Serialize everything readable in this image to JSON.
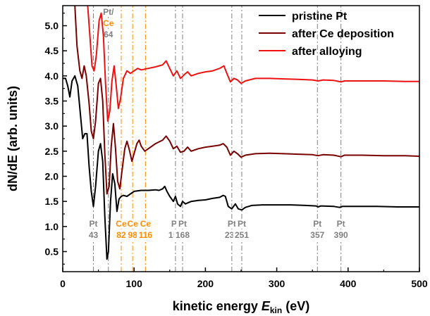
{
  "chart_data": {
    "type": "line",
    "xlabel_prefix": "kinetic energy ",
    "xlabel_symbol": "E",
    "xlabel_subscript": "kin",
    "xlabel_unit": " (eV)",
    "ylabel": "dN/dE (arb. units)",
    "xlim": [
      0,
      500
    ],
    "ylim": [
      0.1,
      5.4
    ],
    "xticks": [
      0,
      100,
      200,
      300,
      400,
      500
    ],
    "yticks": [
      0.5,
      1.0,
      1.5,
      2.0,
      2.5,
      3.0,
      3.5,
      4.0,
      4.5,
      5.0
    ],
    "ytick_labels": [
      "0.5",
      "1.0",
      "1.5",
      "2.0",
      "2.5",
      "3.0",
      "3.5",
      "4.0",
      "4.5",
      "5.0"
    ],
    "grid": false,
    "legend_position": "top-right",
    "series": [
      {
        "name": "pristine Pt",
        "color": "#000000",
        "points": [
          [
            0,
            3.95
          ],
          [
            4,
            3.95
          ],
          [
            7,
            3.8
          ],
          [
            10,
            3.58
          ],
          [
            13,
            3.9
          ],
          [
            17,
            4.0
          ],
          [
            21,
            3.8
          ],
          [
            25,
            3.2
          ],
          [
            28,
            2.75
          ],
          [
            31,
            2.85
          ],
          [
            34,
            2.85
          ],
          [
            37,
            2.2
          ],
          [
            40,
            1.7
          ],
          [
            43,
            1.4
          ],
          [
            46,
            1.8
          ],
          [
            50,
            2.5
          ],
          [
            53,
            2.65
          ],
          [
            56,
            2.3
          ],
          [
            59,
            1.2
          ],
          [
            62,
            0.35
          ],
          [
            64,
            0.5
          ],
          [
            67,
            1.5
          ],
          [
            70,
            2.05
          ],
          [
            73,
            1.85
          ],
          [
            76,
            1.3
          ],
          [
            79,
            1.55
          ],
          [
            82,
            1.6
          ],
          [
            85,
            1.62
          ],
          [
            90,
            1.6
          ],
          [
            95,
            1.65
          ],
          [
            100,
            1.7
          ],
          [
            110,
            1.72
          ],
          [
            120,
            1.72
          ],
          [
            130,
            1.73
          ],
          [
            135,
            1.72
          ],
          [
            140,
            1.75
          ],
          [
            143,
            1.8
          ],
          [
            146,
            1.7
          ],
          [
            150,
            1.6
          ],
          [
            155,
            1.5
          ],
          [
            158,
            1.6
          ],
          [
            161,
            1.45
          ],
          [
            165,
            1.4
          ],
          [
            168,
            1.5
          ],
          [
            172,
            1.45
          ],
          [
            180,
            1.5
          ],
          [
            190,
            1.52
          ],
          [
            200,
            1.53
          ],
          [
            210,
            1.56
          ],
          [
            220,
            1.58
          ],
          [
            225,
            1.62
          ],
          [
            228,
            1.6
          ],
          [
            232,
            1.4
          ],
          [
            237,
            1.35
          ],
          [
            242,
            1.45
          ],
          [
            246,
            1.35
          ],
          [
            251,
            1.33
          ],
          [
            256,
            1.38
          ],
          [
            265,
            1.42
          ],
          [
            280,
            1.43
          ],
          [
            300,
            1.43
          ],
          [
            320,
            1.43
          ],
          [
            340,
            1.42
          ],
          [
            355,
            1.41
          ],
          [
            358,
            1.39
          ],
          [
            362,
            1.41
          ],
          [
            380,
            1.4
          ],
          [
            388,
            1.38
          ],
          [
            392,
            1.4
          ],
          [
            410,
            1.4
          ],
          [
            440,
            1.4
          ],
          [
            470,
            1.39
          ],
          [
            500,
            1.39
          ]
        ]
      },
      {
        "name": "after Ce deposition",
        "color": "#7a0000",
        "points": [
          [
            17,
            5.4
          ],
          [
            20,
            4.6
          ],
          [
            24,
            4.1
          ],
          [
            27,
            3.95
          ],
          [
            30,
            4.2
          ],
          [
            33,
            4.0
          ],
          [
            37,
            3.45
          ],
          [
            40,
            2.9
          ],
          [
            43,
            2.75
          ],
          [
            46,
            3.1
          ],
          [
            50,
            3.85
          ],
          [
            53,
            3.95
          ],
          [
            56,
            3.5
          ],
          [
            59,
            2.45
          ],
          [
            62,
            1.65
          ],
          [
            65,
            1.8
          ],
          [
            68,
            2.6
          ],
          [
            71,
            3.05
          ],
          [
            74,
            2.55
          ],
          [
            77,
            1.9
          ],
          [
            80,
            1.75
          ],
          [
            83,
            2.1
          ],
          [
            87,
            2.55
          ],
          [
            90,
            2.7
          ],
          [
            93,
            2.55
          ],
          [
            97,
            2.3
          ],
          [
            100,
            2.45
          ],
          [
            104,
            2.65
          ],
          [
            107,
            2.72
          ],
          [
            110,
            2.6
          ],
          [
            115,
            2.5
          ],
          [
            120,
            2.55
          ],
          [
            130,
            2.65
          ],
          [
            140,
            2.72
          ],
          [
            145,
            2.8
          ],
          [
            150,
            2.7
          ],
          [
            155,
            2.55
          ],
          [
            160,
            2.6
          ],
          [
            165,
            2.48
          ],
          [
            170,
            2.5
          ],
          [
            175,
            2.58
          ],
          [
            180,
            2.5
          ],
          [
            190,
            2.55
          ],
          [
            200,
            2.58
          ],
          [
            210,
            2.6
          ],
          [
            220,
            2.62
          ],
          [
            225,
            2.65
          ],
          [
            230,
            2.58
          ],
          [
            235,
            2.42
          ],
          [
            240,
            2.5
          ],
          [
            245,
            2.45
          ],
          [
            250,
            2.38
          ],
          [
            256,
            2.42
          ],
          [
            270,
            2.45
          ],
          [
            290,
            2.46
          ],
          [
            310,
            2.45
          ],
          [
            330,
            2.44
          ],
          [
            350,
            2.43
          ],
          [
            358,
            2.41
          ],
          [
            365,
            2.43
          ],
          [
            380,
            2.42
          ],
          [
            390,
            2.39
          ],
          [
            395,
            2.42
          ],
          [
            420,
            2.42
          ],
          [
            450,
            2.41
          ],
          [
            480,
            2.41
          ],
          [
            500,
            2.4
          ]
        ]
      },
      {
        "name": "after alloying",
        "color": "#ee1111",
        "points": [
          [
            35,
            5.4
          ],
          [
            38,
            4.8
          ],
          [
            41,
            4.2
          ],
          [
            44,
            4.1
          ],
          [
            47,
            4.4
          ],
          [
            51,
            5.1
          ],
          [
            54,
            5.25
          ],
          [
            57,
            4.8
          ],
          [
            60,
            3.85
          ],
          [
            63,
            3.1
          ],
          [
            66,
            3.3
          ],
          [
            69,
            3.9
          ],
          [
            72,
            4.2
          ],
          [
            75,
            3.8
          ],
          [
            78,
            3.35
          ],
          [
            81,
            3.55
          ],
          [
            85,
            3.95
          ],
          [
            90,
            4.1
          ],
          [
            95,
            4.05
          ],
          [
            100,
            4.1
          ],
          [
            105,
            4.15
          ],
          [
            110,
            4.12
          ],
          [
            120,
            4.15
          ],
          [
            130,
            4.18
          ],
          [
            140,
            4.22
          ],
          [
            145,
            4.3
          ],
          [
            150,
            4.15
          ],
          [
            155,
            4.0
          ],
          [
            160,
            4.1
          ],
          [
            165,
            3.95
          ],
          [
            170,
            4.02
          ],
          [
            175,
            4.08
          ],
          [
            180,
            4.0
          ],
          [
            190,
            4.05
          ],
          [
            200,
            4.08
          ],
          [
            210,
            4.1
          ],
          [
            220,
            4.15
          ],
          [
            226,
            4.2
          ],
          [
            230,
            4.05
          ],
          [
            235,
            3.88
          ],
          [
            240,
            3.95
          ],
          [
            245,
            3.92
          ],
          [
            250,
            3.85
          ],
          [
            256,
            3.9
          ],
          [
            270,
            3.95
          ],
          [
            290,
            3.95
          ],
          [
            310,
            3.94
          ],
          [
            330,
            3.93
          ],
          [
            350,
            3.92
          ],
          [
            358,
            3.9
          ],
          [
            365,
            3.92
          ],
          [
            380,
            3.91
          ],
          [
            390,
            3.88
          ],
          [
            395,
            3.9
          ],
          [
            420,
            3.9
          ],
          [
            450,
            3.9
          ],
          [
            480,
            3.89
          ],
          [
            500,
            3.89
          ]
        ]
      }
    ],
    "markers": [
      {
        "x": 43,
        "color": "#808080",
        "labels": [
          {
            "text": "Pt",
            "color": "#808080"
          },
          {
            "text": "43",
            "color": "#808080"
          }
        ],
        "label_y": 1.0
      },
      {
        "x": 64,
        "color": "#808080",
        "labels": [
          {
            "text": "Pt/",
            "color": "#808080"
          },
          {
            "text": "Ce",
            "color": "#ff8c00"
          },
          {
            "text": "64",
            "color": "#808080"
          }
        ],
        "label_y": 5.22
      },
      {
        "x": 82,
        "color": "#ff8c00",
        "labels": [
          {
            "text": "Ce",
            "color": "#ff8c00"
          },
          {
            "text": "82",
            "color": "#ff8c00"
          }
        ],
        "label_y": 1.0
      },
      {
        "x": 98,
        "color": "#ff8c00",
        "labels": [
          {
            "text": "Ce",
            "color": "#ff8c00"
          },
          {
            "text": "98",
            "color": "#ff8c00"
          }
        ],
        "label_y": 1.0
      },
      {
        "x": 116,
        "color": "#ff8c00",
        "labels": [
          {
            "text": "Ce",
            "color": "#ff8c00"
          },
          {
            "text": "116",
            "color": "#ff8c00"
          }
        ],
        "label_y": 1.0
      },
      {
        "x": 158,
        "color": "#808080",
        "labels": [
          {
            "text": "Pt",
            "color": "#808080"
          },
          {
            "text": "158",
            "color": "#808080"
          }
        ],
        "label_y": 1.0
      },
      {
        "x": 168,
        "color": "#808080",
        "labels": [
          {
            "text": "Pt",
            "color": "#808080"
          },
          {
            "text": "168",
            "color": "#808080"
          }
        ],
        "label_y": 1.0
      },
      {
        "x": 237,
        "color": "#808080",
        "labels": [
          {
            "text": "Pt",
            "color": "#808080"
          },
          {
            "text": "237",
            "color": "#808080"
          }
        ],
        "label_y": 1.0
      },
      {
        "x": 251,
        "color": "#808080",
        "labels": [
          {
            "text": "Pt",
            "color": "#808080"
          },
          {
            "text": "251",
            "color": "#808080"
          }
        ],
        "label_y": 1.0
      },
      {
        "x": 357,
        "color": "#808080",
        "labels": [
          {
            "text": "Pt",
            "color": "#808080"
          },
          {
            "text": "357",
            "color": "#808080"
          }
        ],
        "label_y": 1.0
      },
      {
        "x": 390,
        "color": "#808080",
        "labels": [
          {
            "text": "Pt",
            "color": "#808080"
          },
          {
            "text": "390",
            "color": "#808080"
          }
        ],
        "label_y": 1.0
      }
    ]
  }
}
